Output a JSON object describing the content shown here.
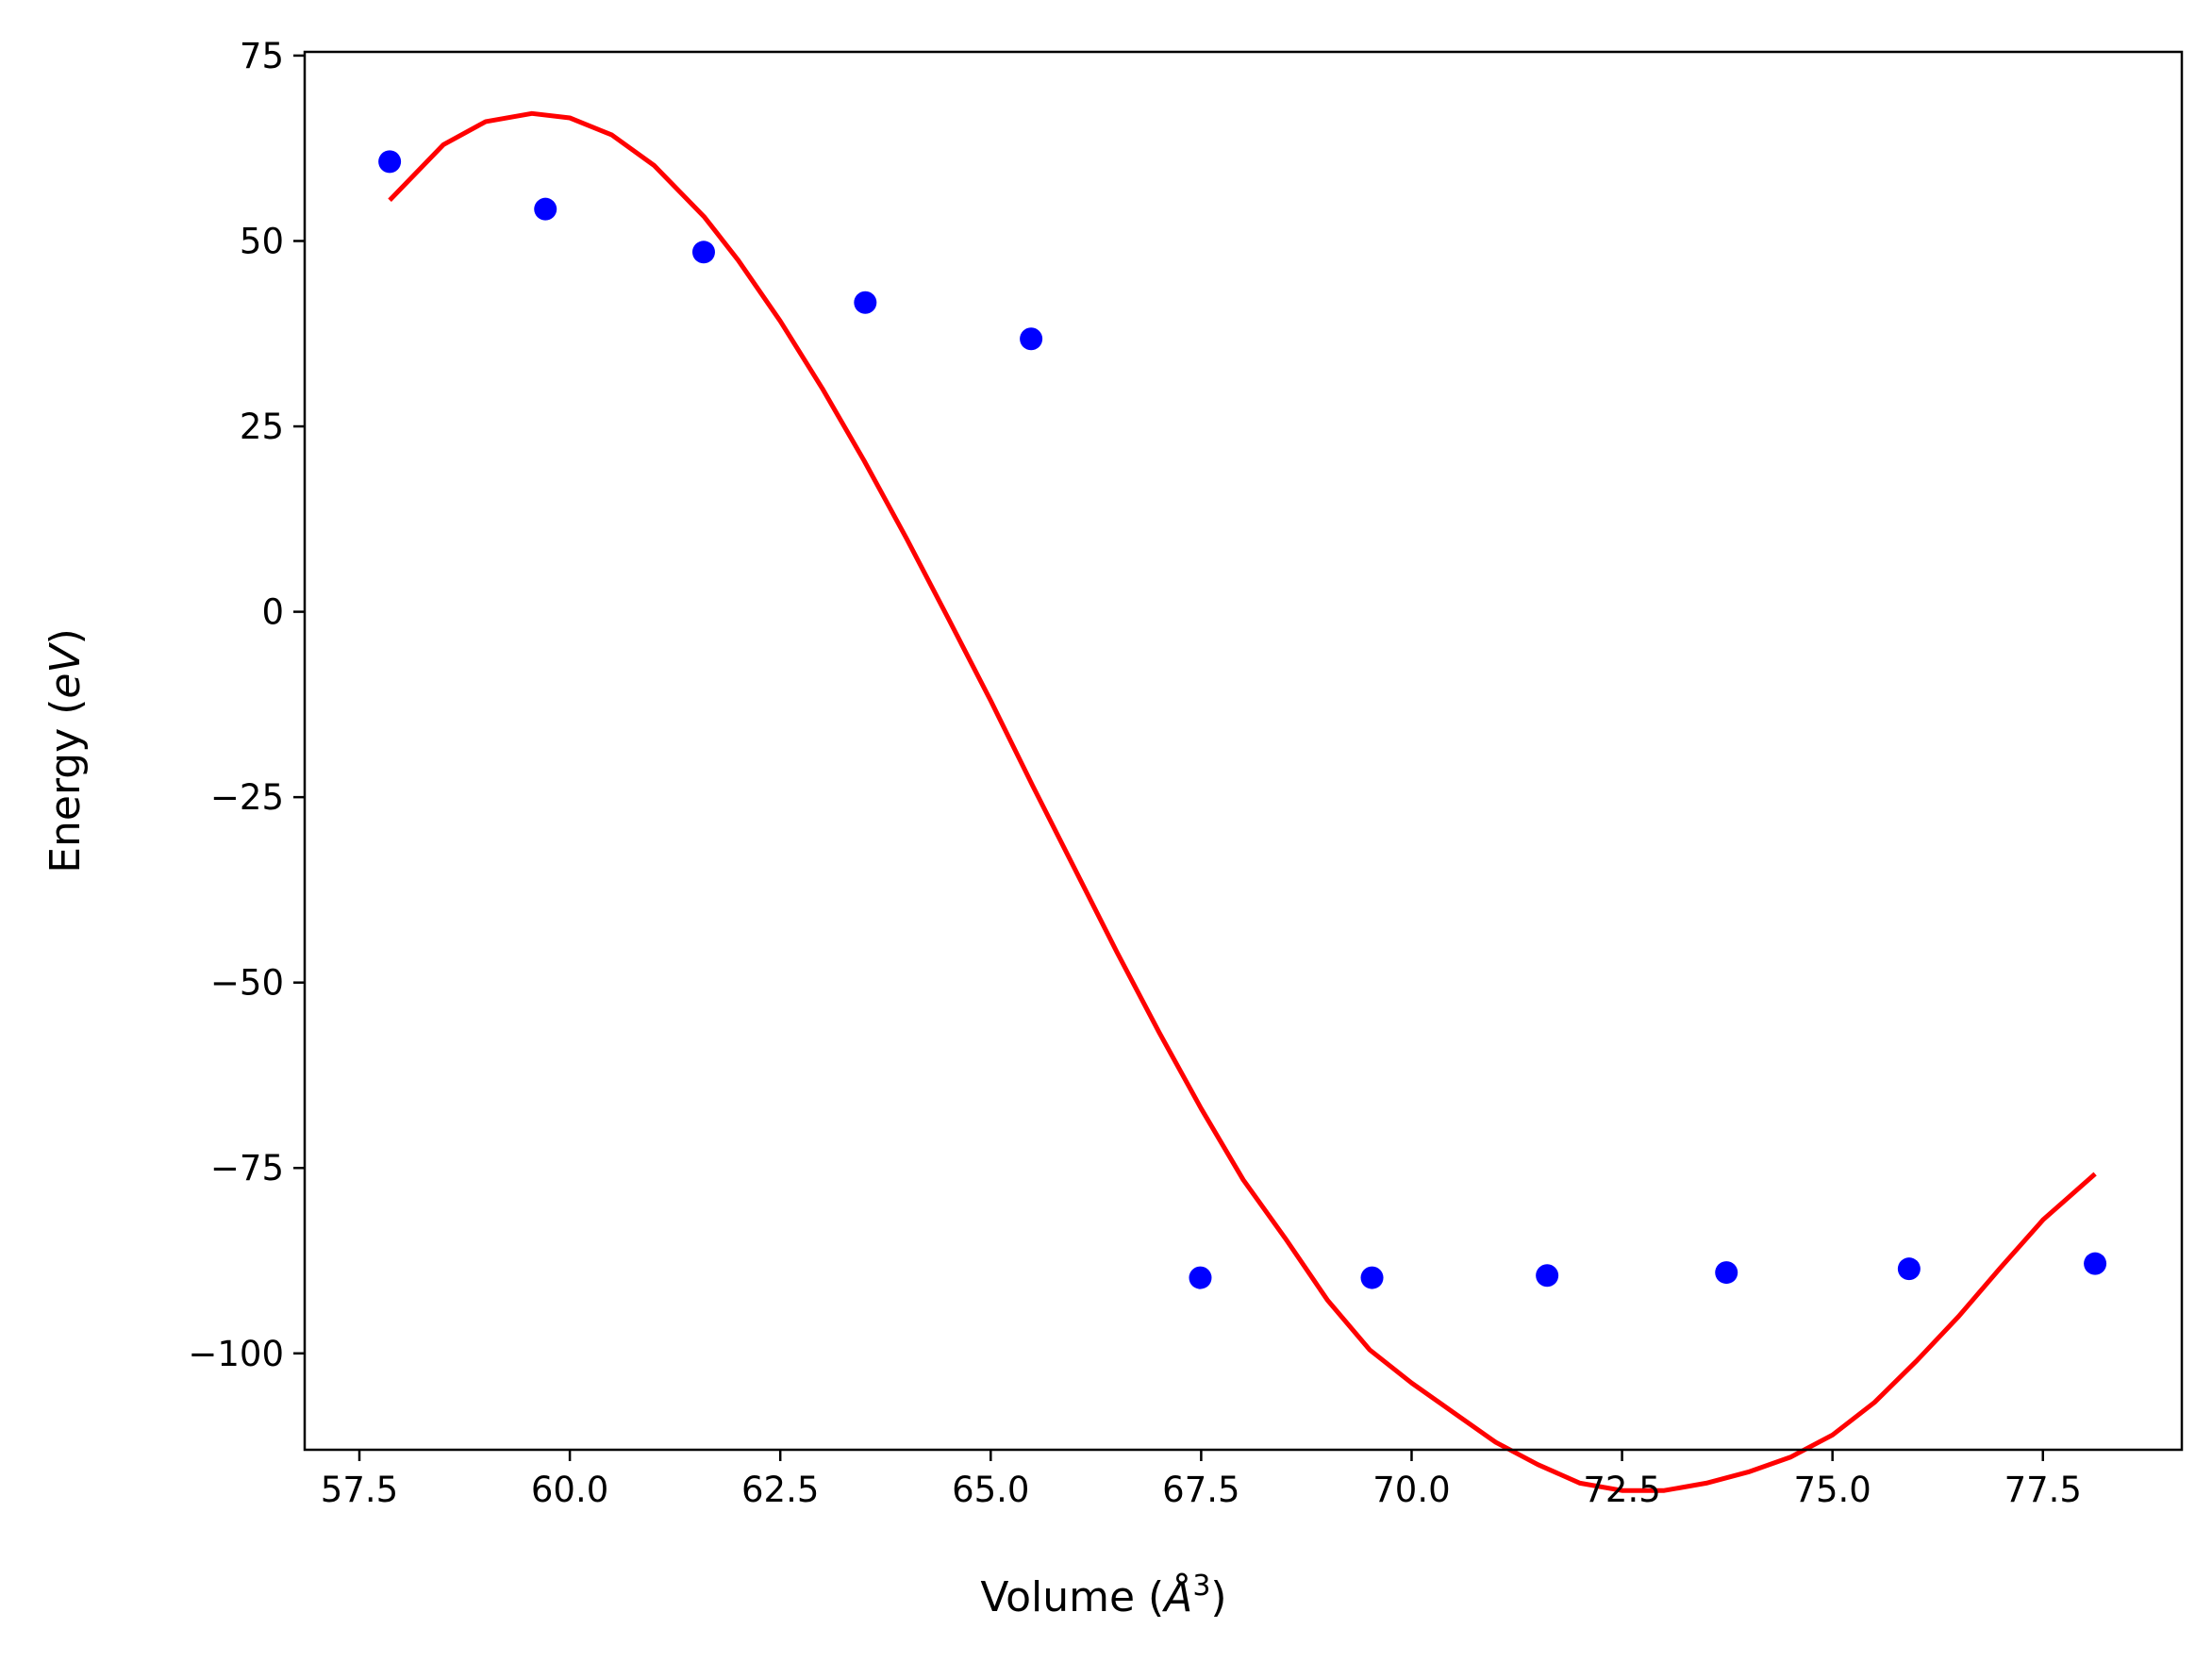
{
  "chart_data": {
    "type": "scatter",
    "xlabel": "Volume (Å³)",
    "xlabel_parts": {
      "prefix": "Volume (",
      "italic": "Å",
      "sup": "3",
      "suffix": ")"
    },
    "ylabel": "Energy (eV)",
    "ylabel_parts": {
      "prefix": "Energy (",
      "italic": "eV",
      "suffix": ")"
    },
    "xlim": [
      56.85,
      79.15
    ],
    "ylim": [
      -113,
      75.5
    ],
    "x_ticks": [
      57.5,
      60.0,
      62.5,
      65.0,
      67.5,
      70.0,
      72.5,
      75.0,
      77.5
    ],
    "x_tick_labels": [
      "57.5",
      "60.0",
      "62.5",
      "65.0",
      "67.5",
      "70.0",
      "72.5",
      "75.0",
      "77.5"
    ],
    "y_ticks": [
      75,
      50,
      25,
      0,
      -25,
      -50,
      -75,
      -100
    ],
    "y_tick_labels": [
      "75",
      "50",
      "25",
      "0",
      "−25",
      "−50",
      "−75",
      "−100"
    ],
    "grid": false,
    "series": [
      {
        "kind": "scatter",
        "color": "#0000ff",
        "x": [
          57.86,
          59.71,
          61.59,
          63.51,
          65.48,
          67.49,
          69.53,
          71.61,
          73.74,
          75.91,
          78.12
        ],
        "y": [
          60.7,
          54.3,
          48.5,
          41.7,
          36.8,
          -89.8,
          -89.8,
          -89.5,
          -89.1,
          -88.6,
          -87.9
        ]
      },
      {
        "kind": "line",
        "color": "#ff0000",
        "x": [
          57.86,
          58.5,
          59.0,
          59.55,
          60.0,
          60.5,
          61.0,
          61.6,
          62.0,
          62.5,
          63.0,
          63.5,
          64.0,
          64.5,
          65.0,
          65.5,
          66.0,
          66.5,
          67.0,
          67.5,
          68.0,
          68.5,
          69.0,
          69.5,
          70.0,
          70.5,
          71.0,
          71.5,
          72.0,
          72.5,
          73.0,
          73.5,
          74.0,
          74.5,
          75.0,
          75.5,
          76.0,
          76.5,
          77.0,
          77.5,
          78.12
        ],
        "y": [
          55.5,
          63.0,
          66.1,
          67.2,
          66.6,
          64.3,
          60.2,
          53.2,
          47.4,
          39.2,
          30.1,
          20.3,
          9.9,
          -1.0,
          -12.0,
          -23.5,
          -34.7,
          -45.9,
          -56.7,
          -67.0,
          -76.6,
          -84.5,
          -92.8,
          -99.5,
          -104.0,
          -108.0,
          -112.0,
          -115.0,
          -117.5,
          -118.5,
          -118.5,
          -117.5,
          -116.0,
          -114.0,
          -111.0,
          -106.6,
          -101.0,
          -95.0,
          -88.4,
          -82.0,
          -75.8
        ]
      }
    ]
  }
}
